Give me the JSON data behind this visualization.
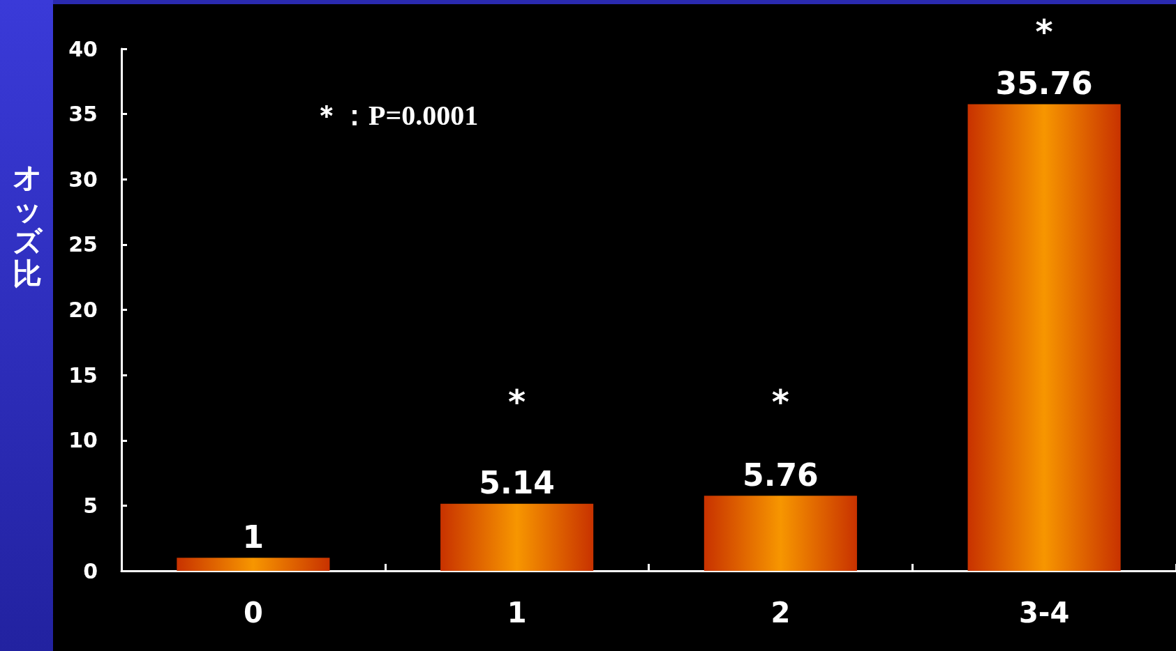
{
  "chart_data": {
    "type": "bar",
    "ylabel": "オッズ比",
    "categories": [
      "0",
      "1",
      "2",
      "3-4"
    ],
    "values": [
      1,
      5.14,
      5.76,
      35.76
    ],
    "color": "#f79600",
    "ylim": [
      0,
      40
    ],
    "yticks": [
      0,
      5,
      10,
      15,
      20,
      25,
      30,
      35,
      40
    ],
    "data_labels": true,
    "grid": false,
    "annotations": [
      "＊：P=0.0001",
      "*",
      "*",
      "*"
    ]
  }
}
